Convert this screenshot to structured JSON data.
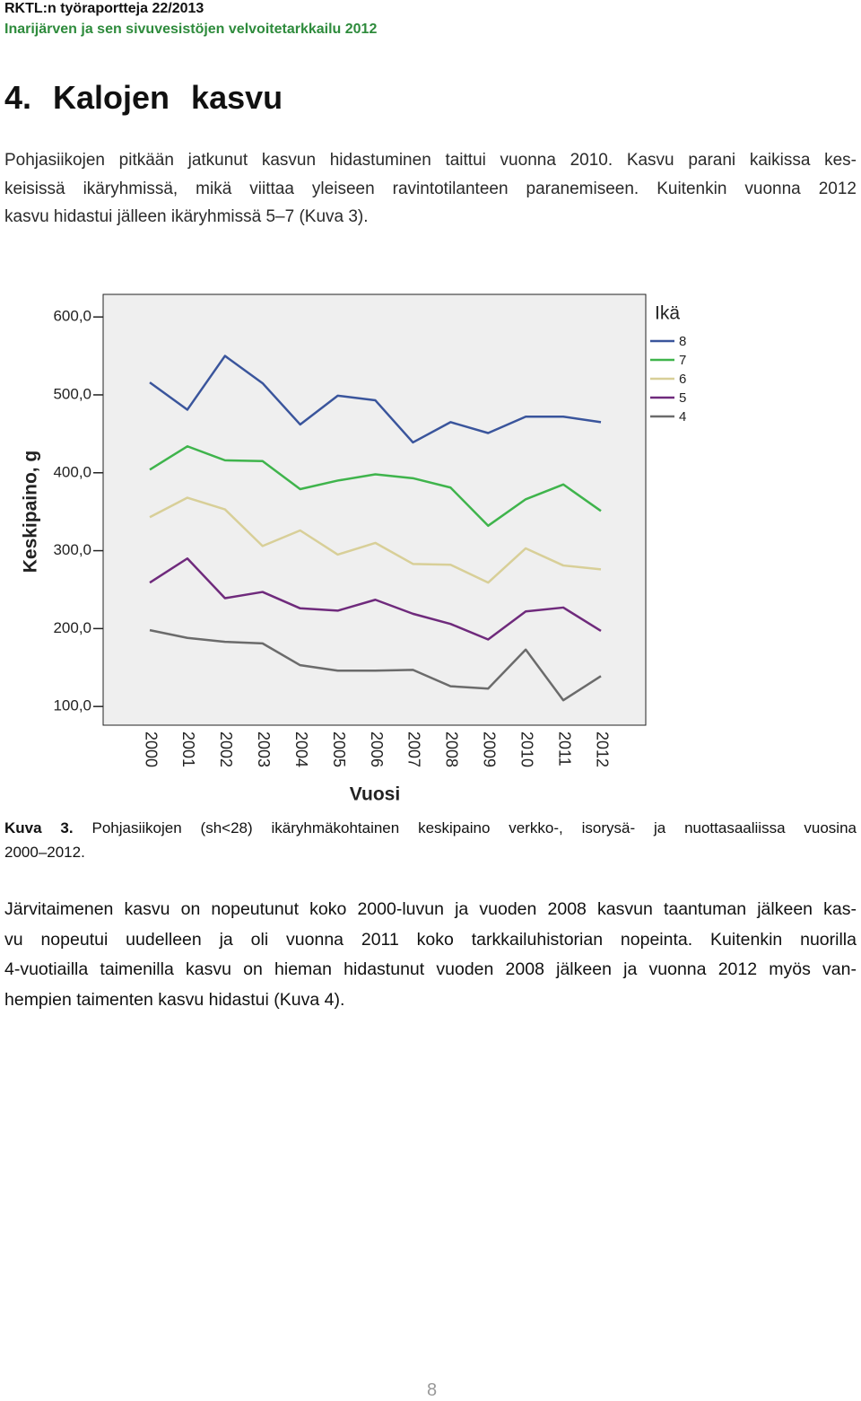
{
  "header": {
    "report": "RKTL:n työraportteja 22/2013",
    "project": "Inarijärven ja sen sivuvesistöjen velvoitetarkkailu 2012"
  },
  "heading": "4. Kalojen kasvu",
  "paragraph1": [
    "Pohjasiikojen pitkään jatkunut kasvun hidastuminen taittui vuonna 2010. Kasvu parani kaikissa kes-",
    "keisissä ikäryhmissä, mikä viittaa yleiseen ravintotilanteen paranemiseen. Kuitenkin vuonna 2012",
    "kasvu hidastui jälleen ikäryhmissä 5–7 (Kuva 3)."
  ],
  "chart_data": {
    "type": "line",
    "x_label": "Vuosi",
    "y_label": "Keskipaino, g",
    "legend_title": "Ikä",
    "legend_position": "right",
    "categories": [
      "2000",
      "2001",
      "2002",
      "2003",
      "2004",
      "2005",
      "2006",
      "2007",
      "2008",
      "2009",
      "2010",
      "2011",
      "2012"
    ],
    "series": [
      {
        "name": "8",
        "color": "#3a559c",
        "values": [
          516,
          481,
          550,
          515,
          462,
          499,
          493,
          439,
          465,
          451,
          472,
          472,
          465
        ]
      },
      {
        "name": "7",
        "color": "#3fb44c",
        "values": [
          404,
          434,
          416,
          415,
          379,
          390,
          398,
          393,
          381,
          332,
          366,
          385,
          351
        ]
      },
      {
        "name": "6",
        "color": "#d8cf98",
        "values": [
          343,
          368,
          353,
          306,
          326,
          295,
          310,
          283,
          282,
          259,
          303,
          281,
          276
        ]
      },
      {
        "name": "5",
        "color": "#6f2a7c",
        "values": [
          259,
          290,
          239,
          247,
          226,
          223,
          237,
          219,
          206,
          186,
          222,
          227,
          197
        ]
      },
      {
        "name": "4",
        "color": "#6b6b6b",
        "values": [
          198,
          188,
          183,
          181,
          153,
          146,
          146,
          147,
          126,
          123,
          173,
          108,
          139
        ]
      }
    ],
    "ylim": [
      76,
      629
    ],
    "yticks": [
      {
        "value": 100,
        "label": "100,0"
      },
      {
        "value": 200,
        "label": "200,0"
      },
      {
        "value": 300,
        "label": "300,0"
      },
      {
        "value": 400,
        "label": "400,0"
      },
      {
        "value": 500,
        "label": "500,0"
      },
      {
        "value": 600,
        "label": "600,0"
      }
    ]
  },
  "caption": {
    "label": "Kuva 3.",
    "lines": [
      "Pohjasiikojen (sh<28) ikäryhmäkohtainen keskipaino verkko-, isorysä- ja nuottasaaliissa vuosina",
      "2000–2012."
    ]
  },
  "paragraph2": [
    "Järvitaimenen kasvu on nopeutunut koko 2000-luvun ja vuoden 2008 kasvun taantuman jälkeen kas-",
    "vu nopeutui uudelleen ja oli vuonna 2011 koko tarkkailuhistorian nopeinta. Kuitenkin nuorilla",
    "4-vuotiailla taimenilla kasvu on hieman hidastunut vuoden 2008 jälkeen ja vuonna 2012 myös van-",
    "hempien taimenten kasvu hidastui (Kuva 4)."
  ],
  "page_number": "8"
}
